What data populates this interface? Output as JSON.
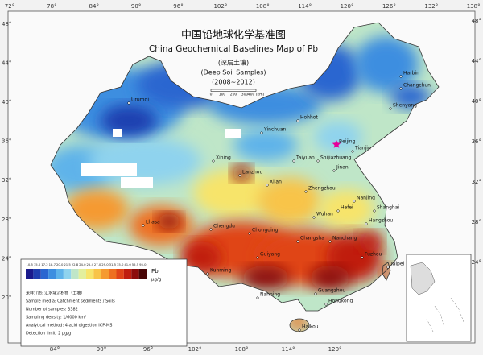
{
  "header": {
    "title_cn": "中国铅地球化学基准图",
    "title_en": "China Geochemical Baselines Map of Pb",
    "subtitle_cn": "(深层土壤)",
    "subtitle_en": "(Deep Soil Samples)",
    "years": "(2008~2012)",
    "scale": [
      "0",
      "100",
      "200",
      "300",
      "400 (km)"
    ]
  },
  "axes": {
    "top": [
      {
        "value": 72,
        "label": "72°"
      },
      {
        "value": 78,
        "label": "78°"
      },
      {
        "value": 84,
        "label": "84°"
      },
      {
        "value": 90,
        "label": "90°"
      },
      {
        "value": 96,
        "label": "96°"
      },
      {
        "value": 102,
        "label": "102°"
      },
      {
        "value": 108,
        "label": "108°"
      },
      {
        "value": 114,
        "label": "114°"
      },
      {
        "value": 120,
        "label": "120°"
      },
      {
        "value": 126,
        "label": "126°"
      },
      {
        "value": 132,
        "label": "132°"
      },
      {
        "value": 138,
        "label": "138°"
      }
    ],
    "bottom": [
      {
        "value": 84,
        "label": "84°"
      },
      {
        "value": 90,
        "label": "90°"
      },
      {
        "value": 96,
        "label": "96°"
      },
      {
        "value": 102,
        "label": "102°"
      },
      {
        "value": 108,
        "label": "108°"
      },
      {
        "value": 114,
        "label": "114°"
      },
      {
        "value": 120,
        "label": "120°"
      }
    ],
    "left": [
      {
        "value": 48,
        "label": "48°"
      },
      {
        "value": 44,
        "label": "44°"
      },
      {
        "value": 40,
        "label": "40°"
      },
      {
        "value": 36,
        "label": "36°"
      },
      {
        "value": 32,
        "label": "32°"
      },
      {
        "value": 28,
        "label": "28°"
      },
      {
        "value": 24,
        "label": "24°"
      },
      {
        "value": 20,
        "label": "20°"
      }
    ],
    "right": [
      {
        "value": 48,
        "label": "48°"
      },
      {
        "value": 44,
        "label": "44°"
      },
      {
        "value": 40,
        "label": "40°"
      },
      {
        "value": 36,
        "label": "36°"
      },
      {
        "value": 32,
        "label": "32°"
      },
      {
        "value": 28,
        "label": "28°"
      },
      {
        "value": 24,
        "label": "24°"
      }
    ]
  },
  "legend": {
    "element": "Pb",
    "unit": "μg/g",
    "classes": [
      {
        "label": "10.5",
        "color": "#1a1a8c"
      },
      {
        "label": "15.0",
        "color": "#1f3fb0"
      },
      {
        "label": "17.2",
        "color": "#2a66d0"
      },
      {
        "label": "18.7",
        "color": "#3d8ee0"
      },
      {
        "label": "20.0",
        "color": "#5fb3ea"
      },
      {
        "label": "21.5",
        "color": "#8fd3ee"
      },
      {
        "label": "22.8",
        "color": "#bfe6c8"
      },
      {
        "label": "24.0",
        "color": "#e3ef9c"
      },
      {
        "label": "25.4",
        "color": "#f7e46a"
      },
      {
        "label": "27.0",
        "color": "#f8c448"
      },
      {
        "label": "29.0",
        "color": "#f59a30"
      },
      {
        "label": "31.5",
        "color": "#ee7020"
      },
      {
        "label": "35.0",
        "color": "#e04418"
      },
      {
        "label": "41.0",
        "color": "#c01e10"
      },
      {
        "label": "55.5",
        "color": "#8c0c0c"
      },
      {
        "label": "95.0",
        "color": "#4a0606"
      }
    ],
    "notes": [
      "采样介质: 汇水域沉积物（土壤）",
      "Sample media: Catchment sediments / Soils",
      "Number of samples: 3382",
      "Sampling density: 1/6000 km²",
      "Analytical method: 4-acid digestion ICP-MS",
      "Detection limit: 2 μg/g"
    ]
  },
  "cities": [
    "Urumqi",
    "Lhasa",
    "Xining",
    "Lanzhou",
    "Yinchuan",
    "Hohhot",
    "Beijing",
    "Tianjin",
    "Shijiazhuang",
    "Taiyuan",
    "Jinan",
    "Zhengzhou",
    "Xi'an",
    "Chengdu",
    "Chongqing",
    "Wuhan",
    "Hefei",
    "Nanjing",
    "Shanghai",
    "Hangzhou",
    "Changsha",
    "Nanchang",
    "Fuzhou",
    "Taipei",
    "Guiyang",
    "Kunming",
    "Nanning",
    "Guangzhou",
    "Hongkong",
    "Haikou",
    "Shenyang",
    "Changchun",
    "Harbin"
  ]
}
